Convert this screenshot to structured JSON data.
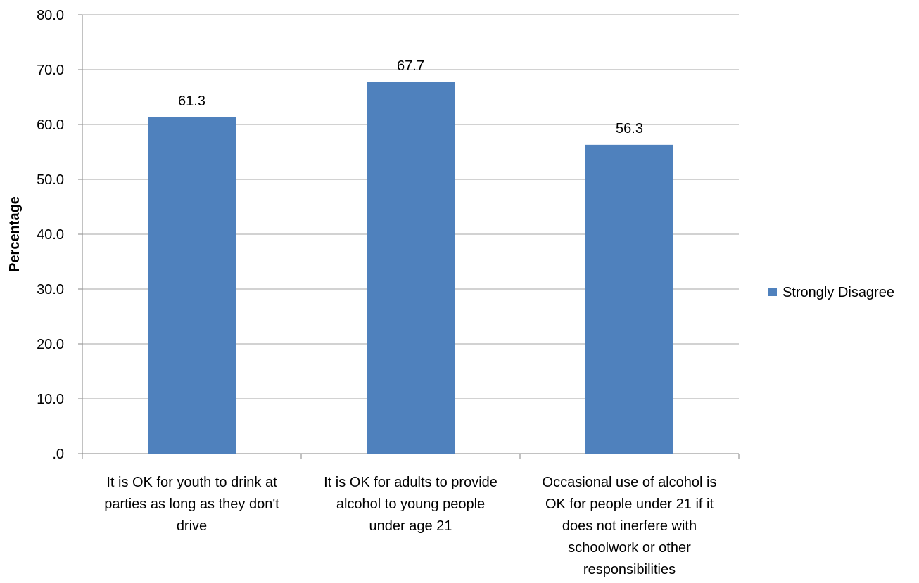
{
  "chart_data": {
    "type": "bar",
    "categories": [
      "It is OK for youth to drink at parties as long as they don't drive",
      "It is OK for adults to provide alcohol to young people under age 21",
      "Occasional use of alcohol is OK for people under 21 if it does not inerfere with schoolwork or other responsibilities"
    ],
    "category_lines": [
      [
        "It is OK for youth to drink at",
        "parties as long as they don't",
        "drive"
      ],
      [
        "It is OK for adults to provide",
        "alcohol to young people",
        "under age 21"
      ],
      [
        "Occasional use of alcohol is",
        "OK for people under 21 if it",
        "does not inerfere with",
        "schoolwork or other",
        "responsibilities"
      ]
    ],
    "series": [
      {
        "name": "Strongly Disagree",
        "values": [
          61.3,
          67.7,
          56.3
        ],
        "color": "#4f81bd"
      }
    ],
    "data_labels": [
      "61.3",
      "67.7",
      "56.3"
    ],
    "ylabel": "Percentage",
    "ylim": [
      0,
      80
    ],
    "yticks": [
      0,
      10,
      20,
      30,
      40,
      50,
      60,
      70,
      80
    ],
    "ytick_labels": [
      ".0",
      "10.0",
      "20.0",
      "30.0",
      "40.0",
      "50.0",
      "60.0",
      "70.0",
      "80.0"
    ],
    "grid": true,
    "grid_color": "#a6a6a6",
    "legend_position": "right"
  }
}
